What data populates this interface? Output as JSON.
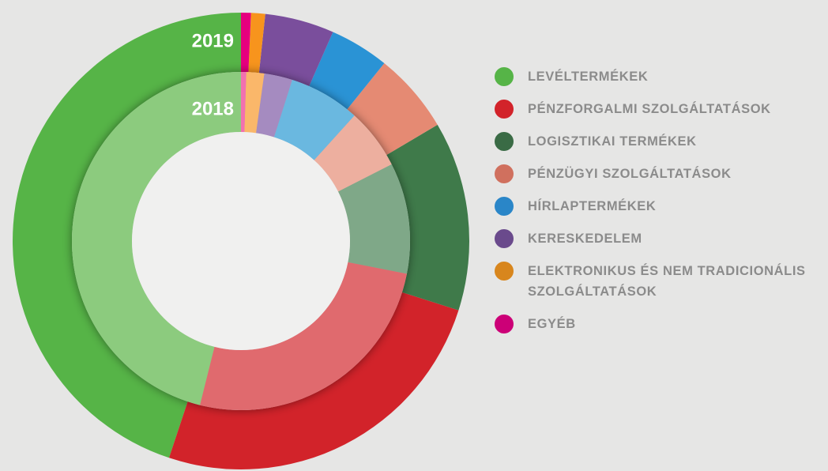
{
  "chart_data": {
    "type": "donut",
    "categories": [
      "LEVÉLTERMÉKEK",
      "PÉNZFORGALMI SZOLGÁLTATÁSOK",
      "LOGISZTIKAI TERMÉKEK",
      "PÉNZÜGYI SZOLGÁLTATÁSOK",
      "HÍRLAPTERMÉKEK",
      "KERESKEDELEM",
      "ELEKTRONIKUS ÉS NEM TRADICIONÁLIS SZOLGÁLTATÁSOK",
      "EGYÉB"
    ],
    "series": [
      {
        "name": "2019",
        "colors": [
          "#56b447",
          "#d2232a",
          "#3f7a4a",
          "#e58a73",
          "#2a93d5",
          "#7a4e9c",
          "#f7941d",
          "#e6007e"
        ],
        "values": [
          44.9,
          25.2,
          13.4,
          5.7,
          4.2,
          4.9,
          1.0,
          0.7
        ]
      },
      {
        "name": "2018",
        "colors": [
          "#8ccb7e",
          "#e06a6e",
          "#7fa888",
          "#edaf9f",
          "#6bb8e0",
          "#a58bc0",
          "#fab76a",
          "#f26fb0"
        ],
        "values": [
          46.1,
          25.8,
          10.6,
          5.8,
          6.8,
          2.7,
          1.7,
          0.5
        ]
      }
    ],
    "legend_colors": [
      "#56b447",
      "#d2232a",
      "#3a6b45",
      "#d0705e",
      "#2a86c8",
      "#6a4a8c",
      "#d8861d",
      "#cc0077"
    ]
  }
}
